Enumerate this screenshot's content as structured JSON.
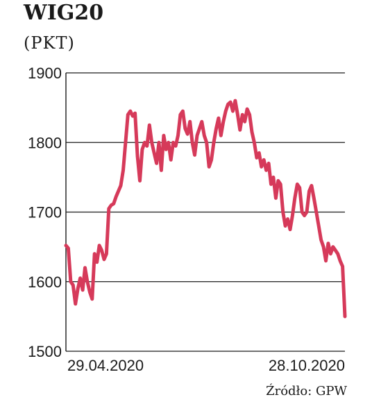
{
  "chart_data": {
    "type": "line",
    "title": "WIG20",
    "subtitle": "(PKT)",
    "xlabel": "",
    "ylabel": "",
    "ylim": [
      1500,
      1900
    ],
    "yticks": [
      1500,
      1600,
      1700,
      1800,
      1900
    ],
    "x_tick_labels": [
      "29.04.2020",
      "28.10.2020"
    ],
    "source": "Źródło: GPW",
    "grid": true,
    "line_color": "#d63a5a",
    "series": [
      {
        "values": [
          1652,
          1648,
          1600,
          1595,
          1568,
          1590,
          1605,
          1588,
          1620,
          1600,
          1585,
          1575,
          1640,
          1628,
          1652,
          1645,
          1632,
          1640,
          1705,
          1710,
          1712,
          1722,
          1730,
          1738,
          1760,
          1800,
          1840,
          1845,
          1838,
          1842,
          1780,
          1745,
          1790,
          1800,
          1795,
          1825,
          1800,
          1785,
          1770,
          1800,
          1760,
          1810,
          1790,
          1800,
          1775,
          1800,
          1795,
          1810,
          1840,
          1845,
          1820,
          1812,
          1830,
          1800,
          1782,
          1810,
          1820,
          1830,
          1810,
          1800,
          1765,
          1775,
          1800,
          1820,
          1835,
          1810,
          1830,
          1845,
          1855,
          1858,
          1845,
          1860,
          1840,
          1818,
          1840,
          1830,
          1848,
          1840,
          1815,
          1800,
          1778,
          1785,
          1765,
          1775,
          1760,
          1770,
          1740,
          1750,
          1720,
          1745,
          1740,
          1700,
          1680,
          1690,
          1675,
          1695,
          1720,
          1740,
          1735,
          1700,
          1695,
          1700,
          1730,
          1738,
          1720,
          1700,
          1680,
          1660,
          1650,
          1630,
          1655,
          1640,
          1650,
          1645,
          1640,
          1630,
          1622,
          1550
        ]
      }
    ]
  }
}
